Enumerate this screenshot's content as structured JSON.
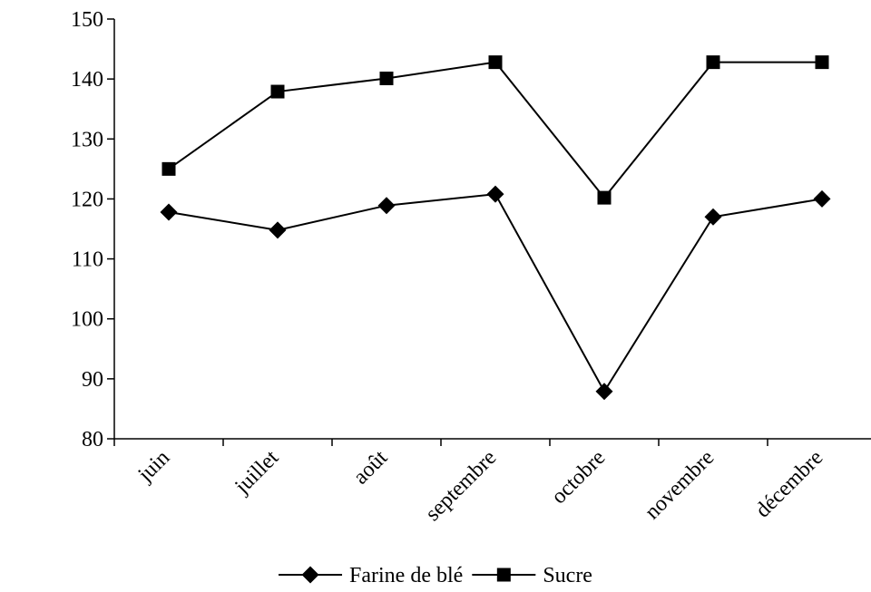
{
  "chart_data": {
    "type": "line",
    "categories": [
      "juin",
      "juillet",
      "août",
      "septembre",
      "octobre",
      "novembre",
      "décembre"
    ],
    "series": [
      {
        "name": "Farine de blé",
        "marker": "diamond",
        "values": [
          117.8,
          114.8,
          118.9,
          120.8,
          87.9,
          117.0,
          120.0
        ]
      },
      {
        "name": "Sucre",
        "marker": "square",
        "values": [
          125.0,
          137.9,
          140.1,
          142.8,
          120.2,
          142.8,
          142.8
        ]
      }
    ],
    "ylim": [
      80,
      150
    ],
    "yticks": [
      80,
      90,
      100,
      110,
      120,
      130,
      140,
      150
    ],
    "grid": false,
    "legend_position": "bottom",
    "colors": {
      "line": "#000000",
      "marker": "#000000"
    }
  }
}
